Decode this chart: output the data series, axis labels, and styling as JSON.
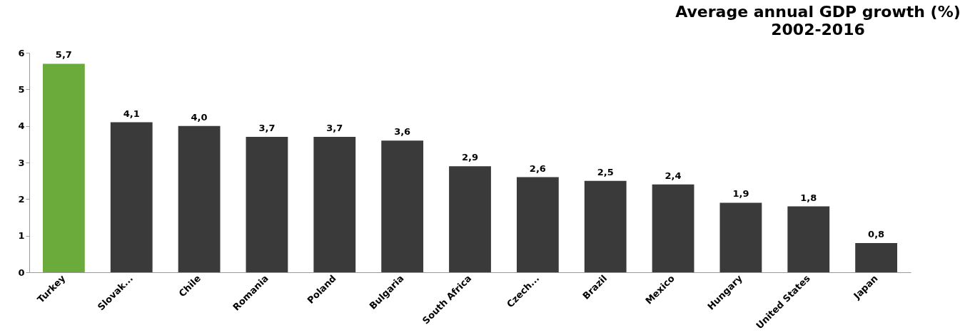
{
  "chart_data": {
    "type": "bar",
    "title": "Average annual GDP growth (%)",
    "subtitle": "2002-2016",
    "categories": [
      "Turkey",
      "Slovak...",
      "Chile",
      "Romania",
      "Poland",
      "Bulgaria",
      "South Africa",
      "Czech...",
      "Brazil",
      "Mexico",
      "Hungary",
      "United States",
      "Japan"
    ],
    "values": [
      5.7,
      4.1,
      4.0,
      3.7,
      3.7,
      3.6,
      2.9,
      2.6,
      2.5,
      2.4,
      1.9,
      1.8,
      0.8
    ],
    "value_labels": [
      "5,7",
      "4,1",
      "4,0",
      "3,7",
      "3,7",
      "3,6",
      "2,9",
      "2,6",
      "2,5",
      "2,4",
      "1,9",
      "1,8",
      "0,8"
    ],
    "colors": [
      "#6aab3c",
      "#3a3a3a",
      "#3a3a3a",
      "#3a3a3a",
      "#3a3a3a",
      "#3a3a3a",
      "#3a3a3a",
      "#3a3a3a",
      "#3a3a3a",
      "#3a3a3a",
      "#3a3a3a",
      "#3a3a3a",
      "#3a3a3a"
    ],
    "ylim": [
      0,
      6
    ],
    "yticks": [
      0,
      1,
      2,
      3,
      4,
      5,
      6
    ]
  }
}
